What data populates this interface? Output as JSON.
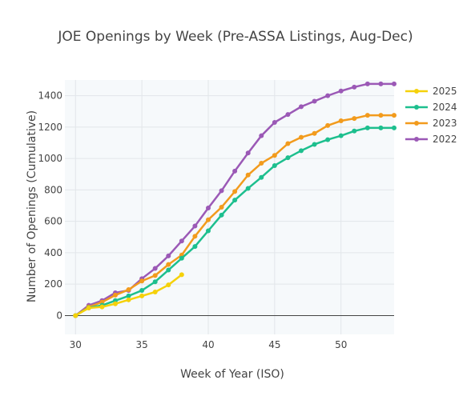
{
  "chart_data": {
    "type": "line",
    "title": "JOE Openings by Week (Pre-ASSA Listings, Aug-Dec)",
    "xlabel": "Week of Year (ISO)",
    "ylabel": "Number of Openings (Cumulative)",
    "xlim": [
      29.2,
      54
    ],
    "ylim": [
      -120,
      1500
    ],
    "x_ticks": [
      30,
      35,
      40,
      45,
      50
    ],
    "y_ticks": [
      0,
      200,
      400,
      600,
      800,
      1000,
      1200,
      1400
    ],
    "grid": true,
    "legend_position": "top-right",
    "series": [
      {
        "name": "2025",
        "color": "#f5d10a",
        "x": [
          30,
          31,
          32,
          33,
          34,
          35,
          36,
          37,
          38
        ],
        "y": [
          0,
          48,
          55,
          75,
          100,
          125,
          150,
          195,
          260
        ]
      },
      {
        "name": "2024",
        "color": "#1dbf8e",
        "x": [
          30,
          31,
          32,
          33,
          34,
          35,
          36,
          37,
          38,
          39,
          40,
          41,
          42,
          43,
          44,
          45,
          46,
          47,
          48,
          49,
          50,
          51,
          52,
          53,
          54
        ],
        "y": [
          0,
          50,
          65,
          95,
          125,
          160,
          215,
          290,
          365,
          440,
          540,
          640,
          735,
          810,
          880,
          955,
          1005,
          1050,
          1090,
          1120,
          1145,
          1175,
          1195,
          1195,
          1195
        ]
      },
      {
        "name": "2023",
        "color": "#f29b1d",
        "x": [
          30,
          31,
          32,
          33,
          34,
          35,
          36,
          37,
          38,
          39,
          40,
          41,
          42,
          43,
          44,
          45,
          46,
          47,
          48,
          49,
          50,
          51,
          52,
          53,
          54
        ],
        "y": [
          0,
          55,
          85,
          130,
          165,
          220,
          255,
          325,
          385,
          505,
          610,
          690,
          790,
          895,
          970,
          1020,
          1095,
          1135,
          1160,
          1210,
          1240,
          1255,
          1275,
          1275,
          1275
        ]
      },
      {
        "name": "2022",
        "color": "#9b59b6",
        "x": [
          30,
          31,
          32,
          33,
          34,
          35,
          36,
          37,
          38,
          39,
          40,
          41,
          42,
          43,
          44,
          45,
          46,
          47,
          48,
          49,
          50,
          51,
          52,
          53,
          54
        ],
        "y": [
          0,
          65,
          95,
          145,
          160,
          235,
          300,
          380,
          475,
          570,
          685,
          795,
          920,
          1035,
          1145,
          1230,
          1280,
          1330,
          1365,
          1400,
          1430,
          1455,
          1475,
          1475,
          1475
        ]
      }
    ]
  }
}
